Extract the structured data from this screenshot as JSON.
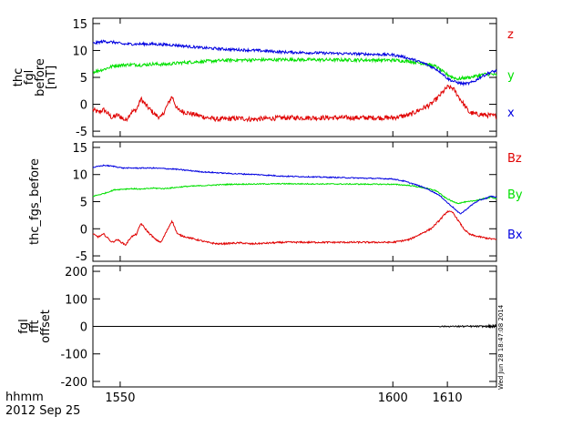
{
  "footer": {
    "time_format": "hhmm",
    "date": "2012 Sep 25"
  },
  "timestamp": "Wed Jun 28 18:47:08 2014",
  "colors": {
    "red": "#e00000",
    "green": "#00e000",
    "blue": "#0000e0",
    "axis": "#000000"
  },
  "chart_data": [
    {
      "type": "line",
      "ylabel": [
        "thc",
        "fgl",
        "before",
        "[nT]"
      ],
      "ylim": [
        -6,
        16
      ],
      "yticks": [
        15,
        10,
        5,
        0,
        -5
      ],
      "xlim": [
        1545.0,
        1619.0
      ],
      "xticks": [
        1550,
        1600,
        1610
      ],
      "legend_placement": "right",
      "series": [
        {
          "name": "z",
          "color": "#e00000",
          "noise": 0.45,
          "x": [
            1545.0,
            1546.0,
            1547.0,
            1548.5,
            1549.5,
            1551.0,
            1552.0,
            1553.0,
            1553.8,
            1555.0,
            1556.5,
            1557.5,
            1558.5,
            1559.5,
            1560.5,
            1562.0,
            1564.0,
            1566.0,
            1568.0,
            1570.0,
            1572.0,
            1574.0,
            1576.0,
            1578.0,
            1580.0,
            1600.0,
            1603.0,
            1605.0,
            1607.0,
            1608.5,
            1610.0,
            1611.0,
            1612.0,
            1613.0,
            1614.0,
            1615.0,
            1617.0,
            1619.0
          ],
          "y": [
            -1.0,
            -1.5,
            -1.0,
            -2.5,
            -2.0,
            -3.0,
            -1.5,
            -1.0,
            1.0,
            -0.5,
            -2.0,
            -2.5,
            -0.5,
            1.5,
            -1.0,
            -1.5,
            -2.0,
            -2.5,
            -2.8,
            -2.7,
            -2.6,
            -2.8,
            -2.7,
            -2.6,
            -2.5,
            -2.5,
            -2.0,
            -1.0,
            0.0,
            1.5,
            3.2,
            3.0,
            1.5,
            0.0,
            -1.5,
            -1.8,
            -2.0,
            -2.2
          ]
        },
        {
          "name": "y",
          "color": "#00e000",
          "noise": 0.3,
          "x": [
            1545.0,
            1547.0,
            1549.0,
            1552.0,
            1554.0,
            1556.0,
            1558.0,
            1562.0,
            1570.0,
            1580.0,
            1600.0,
            1603.0,
            1606.0,
            1608.0,
            1609.5,
            1611.0,
            1612.0,
            1613.0,
            1614.0,
            1615.0,
            1616.0,
            1617.0,
            1618.0,
            1619.0
          ],
          "y": [
            6.0,
            6.5,
            7.2,
            7.4,
            7.3,
            7.5,
            7.4,
            7.8,
            8.2,
            8.3,
            8.2,
            8.0,
            7.5,
            7.0,
            5.8,
            5.0,
            4.7,
            4.9,
            5.0,
            5.2,
            5.4,
            5.6,
            5.6,
            5.4
          ]
        },
        {
          "name": "x",
          "color": "#0000e0",
          "noise": 0.25,
          "x": [
            1545.0,
            1547.0,
            1549.0,
            1550.5,
            1556.0,
            1560.0,
            1565.0,
            1570.0,
            1575.0,
            1580.0,
            1600.0,
            1602.0,
            1604.0,
            1606.0,
            1608.0,
            1609.0,
            1610.0,
            1611.0,
            1612.0,
            1613.0,
            1614.0,
            1615.0,
            1616.0,
            1617.0,
            1618.0,
            1619.0
          ],
          "y": [
            11.3,
            11.7,
            11.5,
            11.2,
            11.2,
            11.0,
            10.5,
            10.2,
            10.0,
            9.7,
            9.2,
            8.8,
            8.2,
            7.5,
            6.5,
            5.8,
            4.8,
            4.3,
            4.0,
            3.8,
            3.9,
            4.3,
            5.0,
            5.5,
            6.0,
            6.2
          ]
        }
      ]
    },
    {
      "type": "line",
      "ylabel": [
        "thc_fgs_before"
      ],
      "ylim": [
        -6,
        16
      ],
      "yticks": [
        15,
        10,
        5,
        0,
        -5
      ],
      "xlim": [
        1545.0,
        1619.0
      ],
      "xticks": [
        1550,
        1600,
        1610
      ],
      "legend_placement": "right",
      "series": [
        {
          "name": "Bz",
          "color": "#e00000",
          "noise": 0.15,
          "x": [
            1545.0,
            1546.0,
            1547.0,
            1548.5,
            1549.5,
            1551.0,
            1552.0,
            1553.0,
            1553.8,
            1555.0,
            1556.5,
            1557.5,
            1558.5,
            1559.5,
            1560.5,
            1562.0,
            1564.0,
            1566.0,
            1568.0,
            1570.0,
            1572.0,
            1574.0,
            1576.0,
            1578.0,
            1580.0,
            1600.0,
            1603.0,
            1605.0,
            1607.0,
            1608.5,
            1610.0,
            1611.0,
            1612.0,
            1613.0,
            1614.0,
            1615.0,
            1617.0,
            1619.0
          ],
          "y": [
            -1.0,
            -1.5,
            -1.0,
            -2.5,
            -2.0,
            -3.0,
            -1.5,
            -1.0,
            1.0,
            -0.5,
            -2.0,
            -2.5,
            -0.5,
            1.5,
            -1.0,
            -1.5,
            -2.0,
            -2.5,
            -2.8,
            -2.7,
            -2.6,
            -2.8,
            -2.7,
            -2.6,
            -2.5,
            -2.5,
            -2.0,
            -1.0,
            0.0,
            1.5,
            3.2,
            3.0,
            1.5,
            0.0,
            -1.0,
            -1.3,
            -1.7,
            -2.0
          ]
        },
        {
          "name": "By",
          "color": "#00e000",
          "noise": 0.1,
          "x": [
            1545.0,
            1547.0,
            1549.0,
            1552.0,
            1554.0,
            1556.0,
            1558.0,
            1562.0,
            1570.0,
            1580.0,
            1600.0,
            1603.0,
            1606.0,
            1608.0,
            1609.5,
            1611.0,
            1612.0,
            1613.0,
            1614.0,
            1615.0,
            1616.0,
            1617.0,
            1618.0,
            1619.0
          ],
          "y": [
            6.0,
            6.5,
            7.2,
            7.4,
            7.3,
            7.5,
            7.4,
            7.8,
            8.2,
            8.3,
            8.2,
            8.0,
            7.5,
            7.0,
            5.8,
            5.0,
            4.7,
            4.9,
            5.0,
            5.2,
            5.4,
            5.6,
            5.8,
            5.6
          ]
        },
        {
          "name": "Bx",
          "color": "#0000e0",
          "noise": 0.1,
          "x": [
            1545.0,
            1547.0,
            1549.0,
            1550.5,
            1556.0,
            1560.0,
            1565.0,
            1570.0,
            1575.0,
            1580.0,
            1600.0,
            1602.0,
            1604.0,
            1606.0,
            1608.0,
            1609.0,
            1610.0,
            1611.0,
            1612.0,
            1612.5,
            1613.0,
            1614.0,
            1615.0,
            1616.0,
            1617.0,
            1618.0,
            1619.0
          ],
          "y": [
            11.3,
            11.7,
            11.5,
            11.2,
            11.2,
            11.0,
            10.5,
            10.2,
            10.0,
            9.7,
            9.2,
            8.8,
            8.2,
            7.5,
            6.5,
            5.8,
            4.8,
            4.0,
            3.0,
            2.8,
            3.2,
            4.0,
            4.8,
            5.3,
            5.6,
            6.0,
            5.8
          ]
        }
      ]
    },
    {
      "type": "line",
      "ylabel": [
        "fgl",
        "fft",
        "offset"
      ],
      "ylim": [
        -220,
        220
      ],
      "yticks": [
        200,
        100,
        0,
        -100,
        -200
      ],
      "xlim": [
        1545.0,
        1619.0
      ],
      "xticks": [
        1550,
        1600,
        1610
      ],
      "series": [
        {
          "name": "",
          "color": "#000000",
          "noise": 0,
          "x": [
            1545.0,
            1608.5,
            1609.0,
            1612.0,
            1615.0,
            1618.0,
            1619.0
          ],
          "y": [
            0,
            0,
            0,
            0,
            0,
            0,
            0
          ],
          "noise_segments": [
            [
              1608.5,
              1612.0,
              2.0
            ],
            [
              1612.0,
              1617.5,
              3.0
            ],
            [
              1617.5,
              1619.0,
              6.0
            ]
          ]
        }
      ]
    }
  ]
}
